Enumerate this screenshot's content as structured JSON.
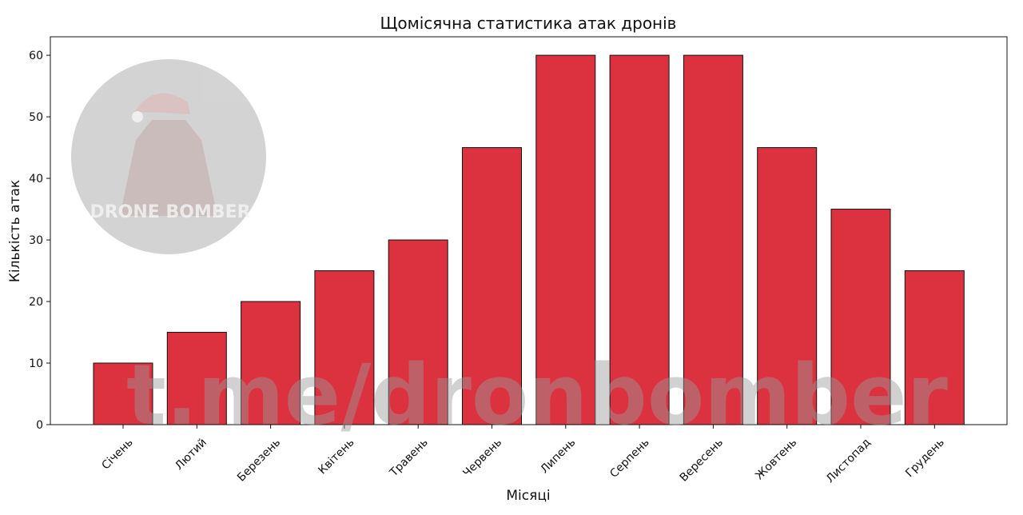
{
  "chart_data": {
    "type": "bar",
    "title": "Щомісячна статистика атак дронів",
    "xlabel": "Місяці",
    "ylabel": "Кількість атак",
    "categories": [
      "Січень",
      "Лютий",
      "Березень",
      "Квітень",
      "Травень",
      "Червень",
      "Липень",
      "Серпень",
      "Вересень",
      "Жовтень",
      "Листопад",
      "Грудень"
    ],
    "values": [
      10,
      15,
      20,
      25,
      30,
      45,
      60,
      60,
      60,
      45,
      35,
      25
    ],
    "ylim": [
      0,
      63
    ],
    "yticks": [
      0,
      10,
      20,
      30,
      40,
      50,
      60
    ],
    "grid": false,
    "bar_color": "#dc3240",
    "edge_color": "#111111"
  },
  "watermark": {
    "text": "t.me/dronbomber",
    "logo_text": "DRONE BOMBER"
  }
}
